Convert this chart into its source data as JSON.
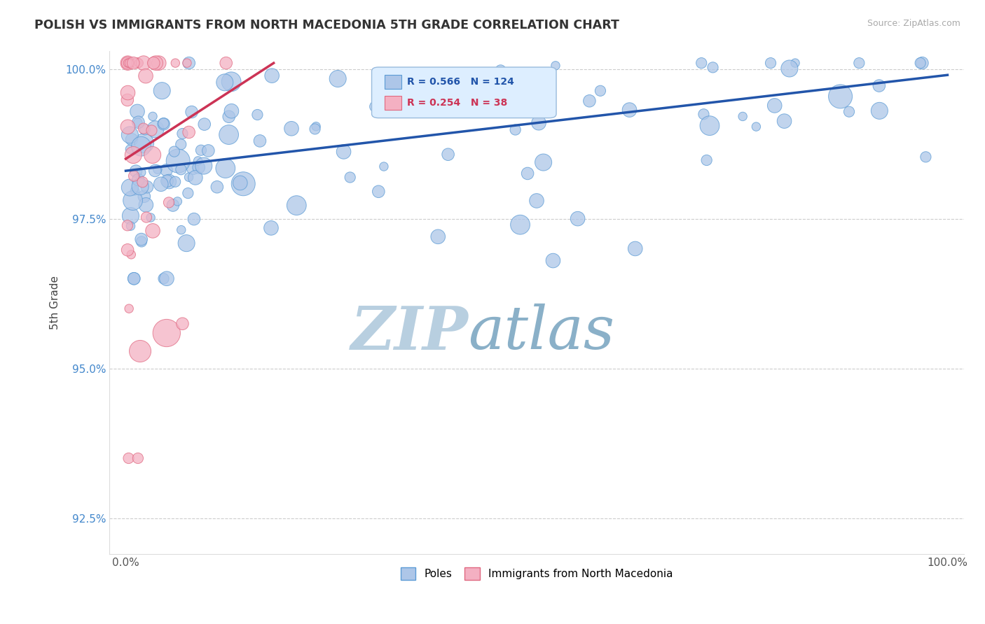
{
  "title": "POLISH VS IMMIGRANTS FROM NORTH MACEDONIA 5TH GRADE CORRELATION CHART",
  "source": "Source: ZipAtlas.com",
  "ylabel": "5th Grade",
  "xlim": [
    -0.02,
    1.02
  ],
  "ylim": [
    0.919,
    1.003
  ],
  "yticks": [
    0.925,
    0.95,
    0.975,
    1.0
  ],
  "ytick_labels": [
    "92.5%",
    "95.0%",
    "97.5%",
    "100.0%"
  ],
  "xticks": [
    0.0,
    0.25,
    0.5,
    0.75,
    1.0
  ],
  "xtick_labels": [
    "0.0%",
    "",
    "",
    "",
    "100.0%"
  ],
  "blue_R": 0.566,
  "blue_N": 124,
  "pink_R": 0.254,
  "pink_N": 38,
  "blue_color": "#adc6e8",
  "blue_edge": "#5b9bd5",
  "pink_color": "#f4b0c2",
  "pink_edge": "#e06880",
  "blue_line_color": "#2255aa",
  "pink_line_color": "#cc3355",
  "watermark_zip": "ZIP",
  "watermark_atlas": "atlas",
  "watermark_color_zip": "#b8cfe0",
  "watermark_color_atlas": "#8ab0c8",
  "legend_box_color": "#ddeeff",
  "legend_border_color": "#99bbdd",
  "blue_line_y0": 0.983,
  "blue_line_y1": 0.999,
  "pink_line_x0": 0.0,
  "pink_line_x1": 0.18,
  "pink_line_y0": 0.985,
  "pink_line_y1": 1.001
}
